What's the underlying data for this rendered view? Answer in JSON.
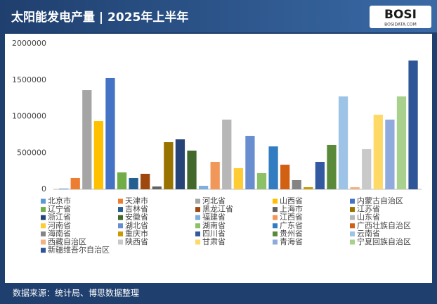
{
  "chart_data": {
    "type": "bar",
    "title": "太阳能发电产量 | 2025年上半年",
    "logo": "BOSI",
    "logo_sub": "BOSIDATA.COM",
    "source": "数据来源：统计局、博思数据整理",
    "categories": [
      null
    ],
    "ylim": [
      0,
      2000000
    ],
    "yticks": [
      0,
      500000,
      1000000,
      1500000,
      2000000
    ],
    "grid": false,
    "legend": "bottom",
    "series": [
      {
        "name": "北京市",
        "color": "#5b9bd5",
        "values": [
          10000
        ]
      },
      {
        "name": "天津市",
        "color": "#ed7d31",
        "values": [
          155000
        ]
      },
      {
        "name": "河北省",
        "color": "#a5a5a5",
        "values": [
          1362000
        ]
      },
      {
        "name": "山西省",
        "color": "#ffc000",
        "values": [
          937000
        ]
      },
      {
        "name": "内蒙古自治区",
        "color": "#4472c4",
        "values": [
          1527000
        ]
      },
      {
        "name": "辽宁省",
        "color": "#70ad47",
        "values": [
          232000
        ]
      },
      {
        "name": "吉林省",
        "color": "#255e91",
        "values": [
          155000
        ]
      },
      {
        "name": "黑龙江省",
        "color": "#9e480e",
        "values": [
          213000
        ]
      },
      {
        "name": "上海市",
        "color": "#636363",
        "values": [
          39000
        ]
      },
      {
        "name": "江苏省",
        "color": "#997300",
        "values": [
          647000
        ]
      },
      {
        "name": "浙江省",
        "color": "#264478",
        "values": [
          686000
        ]
      },
      {
        "name": "安徽省",
        "color": "#43682b",
        "values": [
          531000
        ]
      },
      {
        "name": "福建省",
        "color": "#7cafdd",
        "values": [
          48000
        ]
      },
      {
        "name": "江西省",
        "color": "#f1975a",
        "values": [
          377000
        ]
      },
      {
        "name": "山东省",
        "color": "#b7b7b7",
        "values": [
          957000
        ]
      },
      {
        "name": "河南省",
        "color": "#ffcd33",
        "values": [
          290000
        ]
      },
      {
        "name": "湖北省",
        "color": "#698ed0",
        "values": [
          734000
        ]
      },
      {
        "name": "湖南省",
        "color": "#8cc168",
        "values": [
          222000
        ]
      },
      {
        "name": "广东省",
        "color": "#327dc2",
        "values": [
          589000
        ]
      },
      {
        "name": "广西壮族自治区",
        "color": "#d26012",
        "values": [
          338000
        ]
      },
      {
        "name": "海南省",
        "color": "#848484",
        "values": [
          126000
        ]
      },
      {
        "name": "重庆市",
        "color": "#cc9a00",
        "values": [
          29000
        ]
      },
      {
        "name": "四川省",
        "color": "#335aa1",
        "values": [
          377000
        ]
      },
      {
        "name": "贵州省",
        "color": "#5a8a39",
        "values": [
          609000
        ]
      },
      {
        "name": "云南省",
        "color": "#9dc3e6",
        "values": [
          1275000
        ]
      },
      {
        "name": "西藏自治区",
        "color": "#f4b183",
        "values": [
          29000
        ]
      },
      {
        "name": "陕西省",
        "color": "#c9c9c9",
        "values": [
          551000
        ]
      },
      {
        "name": "甘肃省",
        "color": "#ffd966",
        "values": [
          1024000
        ]
      },
      {
        "name": "青海省",
        "color": "#8faadc",
        "values": [
          957000
        ]
      },
      {
        "name": "宁夏回族自治区",
        "color": "#a9d18e",
        "values": [
          1275000
        ]
      },
      {
        "name": "新疆维吾尔自治区",
        "color": "#2e5597",
        "values": [
          1768000
        ]
      }
    ]
  }
}
